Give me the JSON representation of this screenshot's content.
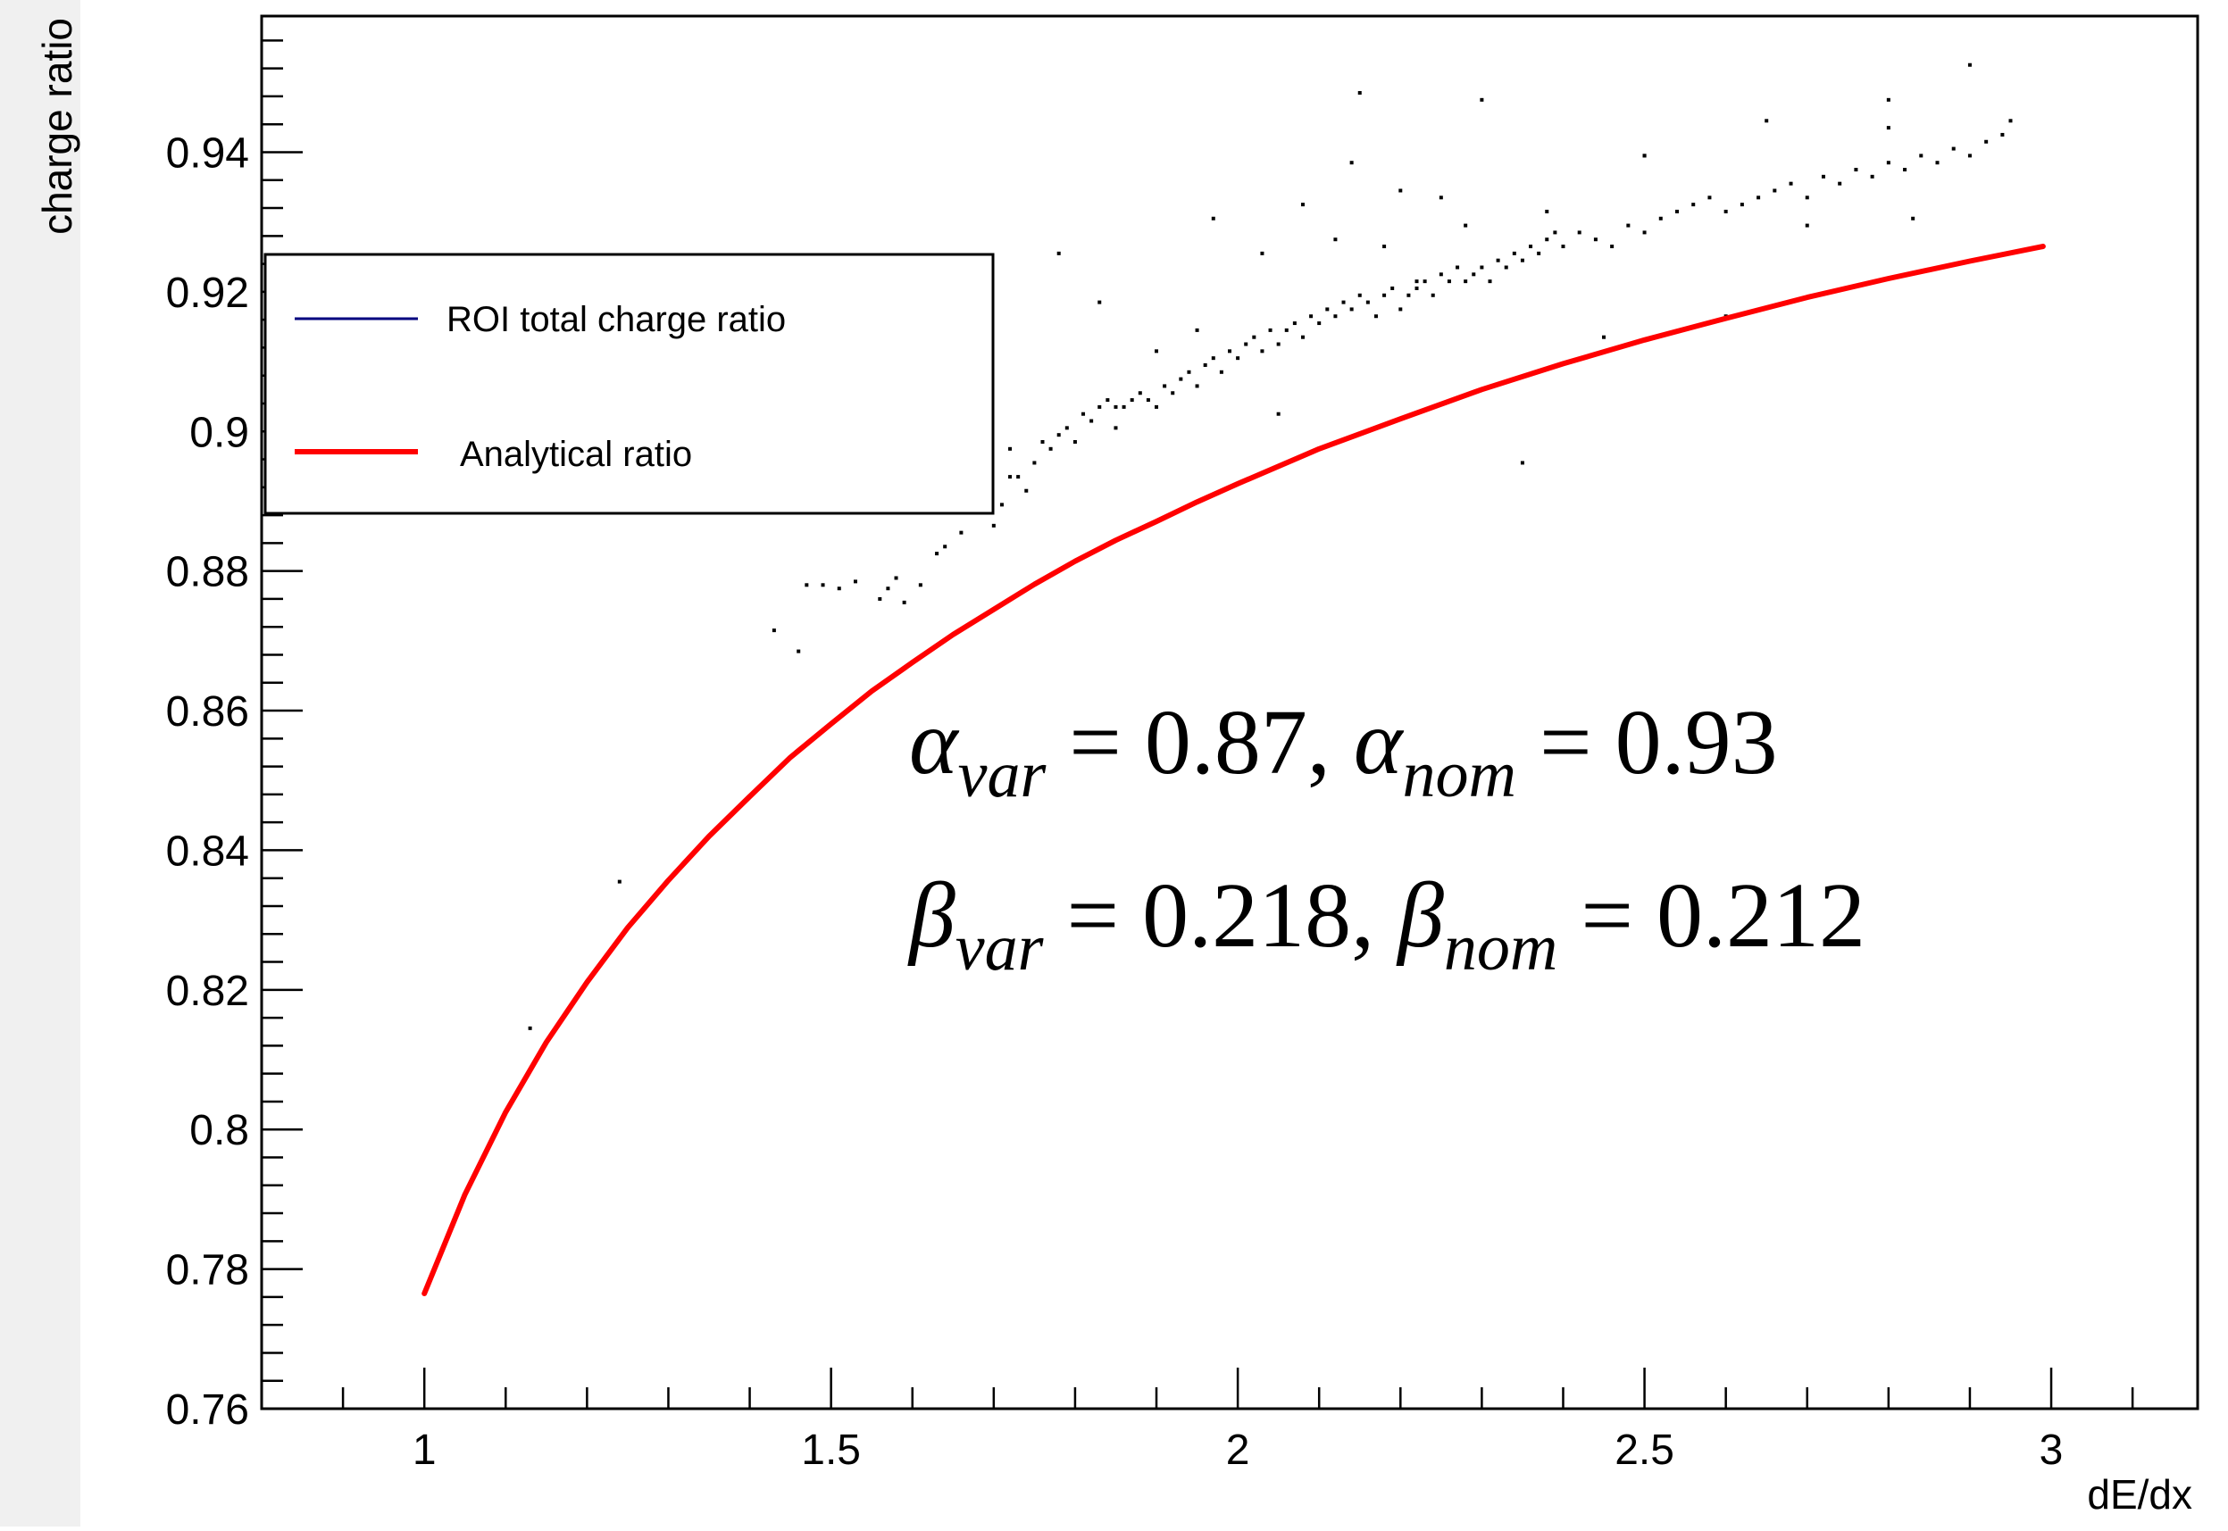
{
  "chart_data": {
    "type": "scatter",
    "xlabel": "dE/dx",
    "ylabel": "charge ratio",
    "xlim": [
      0.8,
      3.18
    ],
    "ylim": [
      0.76,
      0.9595
    ],
    "x_ticks": [
      {
        "value": 1,
        "label": "1"
      },
      {
        "value": 1.5,
        "label": "1.5"
      },
      {
        "value": 2,
        "label": "2"
      },
      {
        "value": 2.5,
        "label": "2.5"
      },
      {
        "value": 3,
        "label": "3"
      }
    ],
    "y_ticks": [
      {
        "value": 0.76,
        "label": "0.76"
      },
      {
        "value": 0.78,
        "label": "0.78"
      },
      {
        "value": 0.8,
        "label": "0.8"
      },
      {
        "value": 0.82,
        "label": "0.82"
      },
      {
        "value": 0.84,
        "label": "0.84"
      },
      {
        "value": 0.86,
        "label": "0.86"
      },
      {
        "value": 0.88,
        "label": "0.88"
      },
      {
        "value": 0.9,
        "label": "0.9"
      },
      {
        "value": 0.92,
        "label": "0.92"
      },
      {
        "value": 0.94,
        "label": "0.94"
      }
    ],
    "legend": {
      "position": "top-left",
      "entries": [
        {
          "label": "ROI total charge ratio",
          "color": "#00007f"
        },
        {
          "label": "Analytical ratio",
          "color": "#ff0000"
        }
      ]
    },
    "series": [
      {
        "name": "ROI total charge ratio",
        "type": "scatter",
        "color": "#000000",
        "x": [
          1.13,
          1.24,
          1.43,
          1.46,
          1.47,
          1.49,
          1.51,
          1.53,
          1.56,
          1.57,
          1.58,
          1.59,
          1.61,
          1.63,
          1.64,
          1.66,
          1.67,
          1.68,
          1.69,
          1.7,
          1.71,
          1.72,
          1.73,
          1.74,
          1.75,
          1.76,
          1.77,
          1.78,
          1.79,
          1.8,
          1.81,
          1.82,
          1.83,
          1.84,
          1.85,
          1.86,
          1.87,
          1.88,
          1.89,
          1.9,
          1.91,
          1.92,
          1.93,
          1.94,
          1.95,
          1.96,
          1.97,
          1.98,
          1.99,
          2.0,
          2.01,
          2.02,
          2.03,
          2.04,
          2.05,
          2.06,
          2.07,
          2.08,
          2.09,
          2.1,
          2.11,
          2.12,
          2.13,
          2.14,
          2.15,
          2.16,
          2.17,
          2.18,
          2.19,
          2.2,
          2.21,
          2.22,
          2.23,
          2.24,
          2.25,
          2.26,
          2.27,
          2.28,
          2.29,
          2.3,
          2.31,
          2.32,
          2.33,
          2.34,
          2.35,
          2.36,
          2.37,
          2.38,
          2.39,
          2.4,
          2.42,
          2.44,
          2.46,
          2.48,
          2.5,
          2.52,
          2.54,
          2.56,
          2.58,
          2.6,
          2.62,
          2.64,
          2.66,
          2.68,
          2.7,
          2.72,
          2.74,
          2.76,
          2.78,
          2.8,
          2.82,
          2.84,
          2.86,
          2.88,
          2.9,
          2.92,
          2.94,
          1.85,
          1.9,
          1.95,
          2.05,
          2.12,
          2.18,
          2.25,
          2.35,
          2.45,
          2.6,
          2.7,
          2.83,
          2.95,
          1.72,
          1.78,
          1.83,
          1.97,
          2.03,
          2.08,
          2.14,
          2.22,
          2.28,
          2.38,
          2.5,
          2.65,
          2.8,
          2.9,
          2.15,
          2.2,
          2.3,
          2.5,
          2.8
        ],
        "y": [
          0.8145,
          0.8355,
          0.8715,
          0.8685,
          0.878,
          0.878,
          0.8775,
          0.8785,
          0.876,
          0.8775,
          0.879,
          0.8755,
          0.878,
          0.8825,
          0.8835,
          0.8855,
          0.8885,
          0.8905,
          0.8885,
          0.8865,
          0.8895,
          0.8935,
          0.8935,
          0.8915,
          0.8955,
          0.8985,
          0.8975,
          0.8995,
          0.9005,
          0.8985,
          0.9025,
          0.9015,
          0.9035,
          0.9045,
          0.9005,
          0.9035,
          0.9045,
          0.9055,
          0.9045,
          0.9035,
          0.9065,
          0.9055,
          0.9075,
          0.9085,
          0.9065,
          0.9095,
          0.9105,
          0.9085,
          0.9115,
          0.9105,
          0.9125,
          0.9135,
          0.9115,
          0.9145,
          0.9125,
          0.9145,
          0.9155,
          0.9135,
          0.9165,
          0.9155,
          0.9175,
          0.9165,
          0.9185,
          0.9175,
          0.9195,
          0.9185,
          0.9165,
          0.9195,
          0.9205,
          0.9175,
          0.9195,
          0.9205,
          0.9215,
          0.9195,
          0.9225,
          0.9215,
          0.9235,
          0.9215,
          0.9225,
          0.9235,
          0.9215,
          0.9245,
          0.9235,
          0.9255,
          0.9245,
          0.9265,
          0.9255,
          0.9275,
          0.9285,
          0.9265,
          0.9285,
          0.9275,
          0.9265,
          0.9295,
          0.9285,
          0.9305,
          0.9315,
          0.9325,
          0.9335,
          0.9315,
          0.9325,
          0.9335,
          0.9345,
          0.9355,
          0.9335,
          0.9365,
          0.9355,
          0.9375,
          0.9365,
          0.9385,
          0.9375,
          0.9395,
          0.9385,
          0.9405,
          0.9395,
          0.9415,
          0.9425,
          0.9035,
          0.9115,
          0.9145,
          0.9025,
          0.9275,
          0.9265,
          0.9335,
          0.8955,
          0.9135,
          0.9165,
          0.9295,
          0.9305,
          0.9445,
          0.8975,
          0.9255,
          0.9185,
          0.9305,
          0.9255,
          0.9325,
          0.9385,
          0.9215,
          0.9295,
          0.9315,
          0.9395,
          0.9445,
          0.9435,
          0.9525,
          0.9485,
          0.9345,
          0.9475,
          0.9395,
          0.9475
        ]
      },
      {
        "name": "Analytical ratio",
        "type": "line",
        "color": "#ff0000",
        "x": [
          1.0,
          1.05,
          1.1,
          1.15,
          1.2,
          1.25,
          1.3,
          1.35,
          1.4,
          1.45,
          1.5,
          1.55,
          1.6,
          1.65,
          1.7,
          1.75,
          1.8,
          1.85,
          1.9,
          1.95,
          2.0,
          2.1,
          2.2,
          2.3,
          2.4,
          2.5,
          2.6,
          2.7,
          2.8,
          2.9,
          2.99
        ],
        "y": [
          0.7765,
          0.7907,
          0.8025,
          0.8125,
          0.8211,
          0.8289,
          0.8357,
          0.842,
          0.8477,
          0.8533,
          0.8581,
          0.8628,
          0.8669,
          0.8709,
          0.8745,
          0.8781,
          0.8814,
          0.8844,
          0.8871,
          0.8899,
          0.8925,
          0.8975,
          0.9018,
          0.906,
          0.9097,
          0.9131,
          0.9162,
          0.9192,
          0.9219,
          0.9244,
          0.9265
        ]
      }
    ],
    "annotations": {
      "line1": {
        "alpha_var_sym": "α",
        "alpha_var_sub": "var",
        "alpha_var_val": " = 0.87, ",
        "alpha_nom_sym": "α",
        "alpha_nom_sub": "nom",
        "alpha_nom_val": " = 0.93"
      },
      "line2": {
        "beta_var_sym": "β",
        "beta_var_sub": "var",
        "beta_var_val": " = 0.218, ",
        "beta_nom_sym": "β",
        "beta_nom_sub": "nom",
        "beta_nom_val": " = 0.212"
      }
    }
  }
}
